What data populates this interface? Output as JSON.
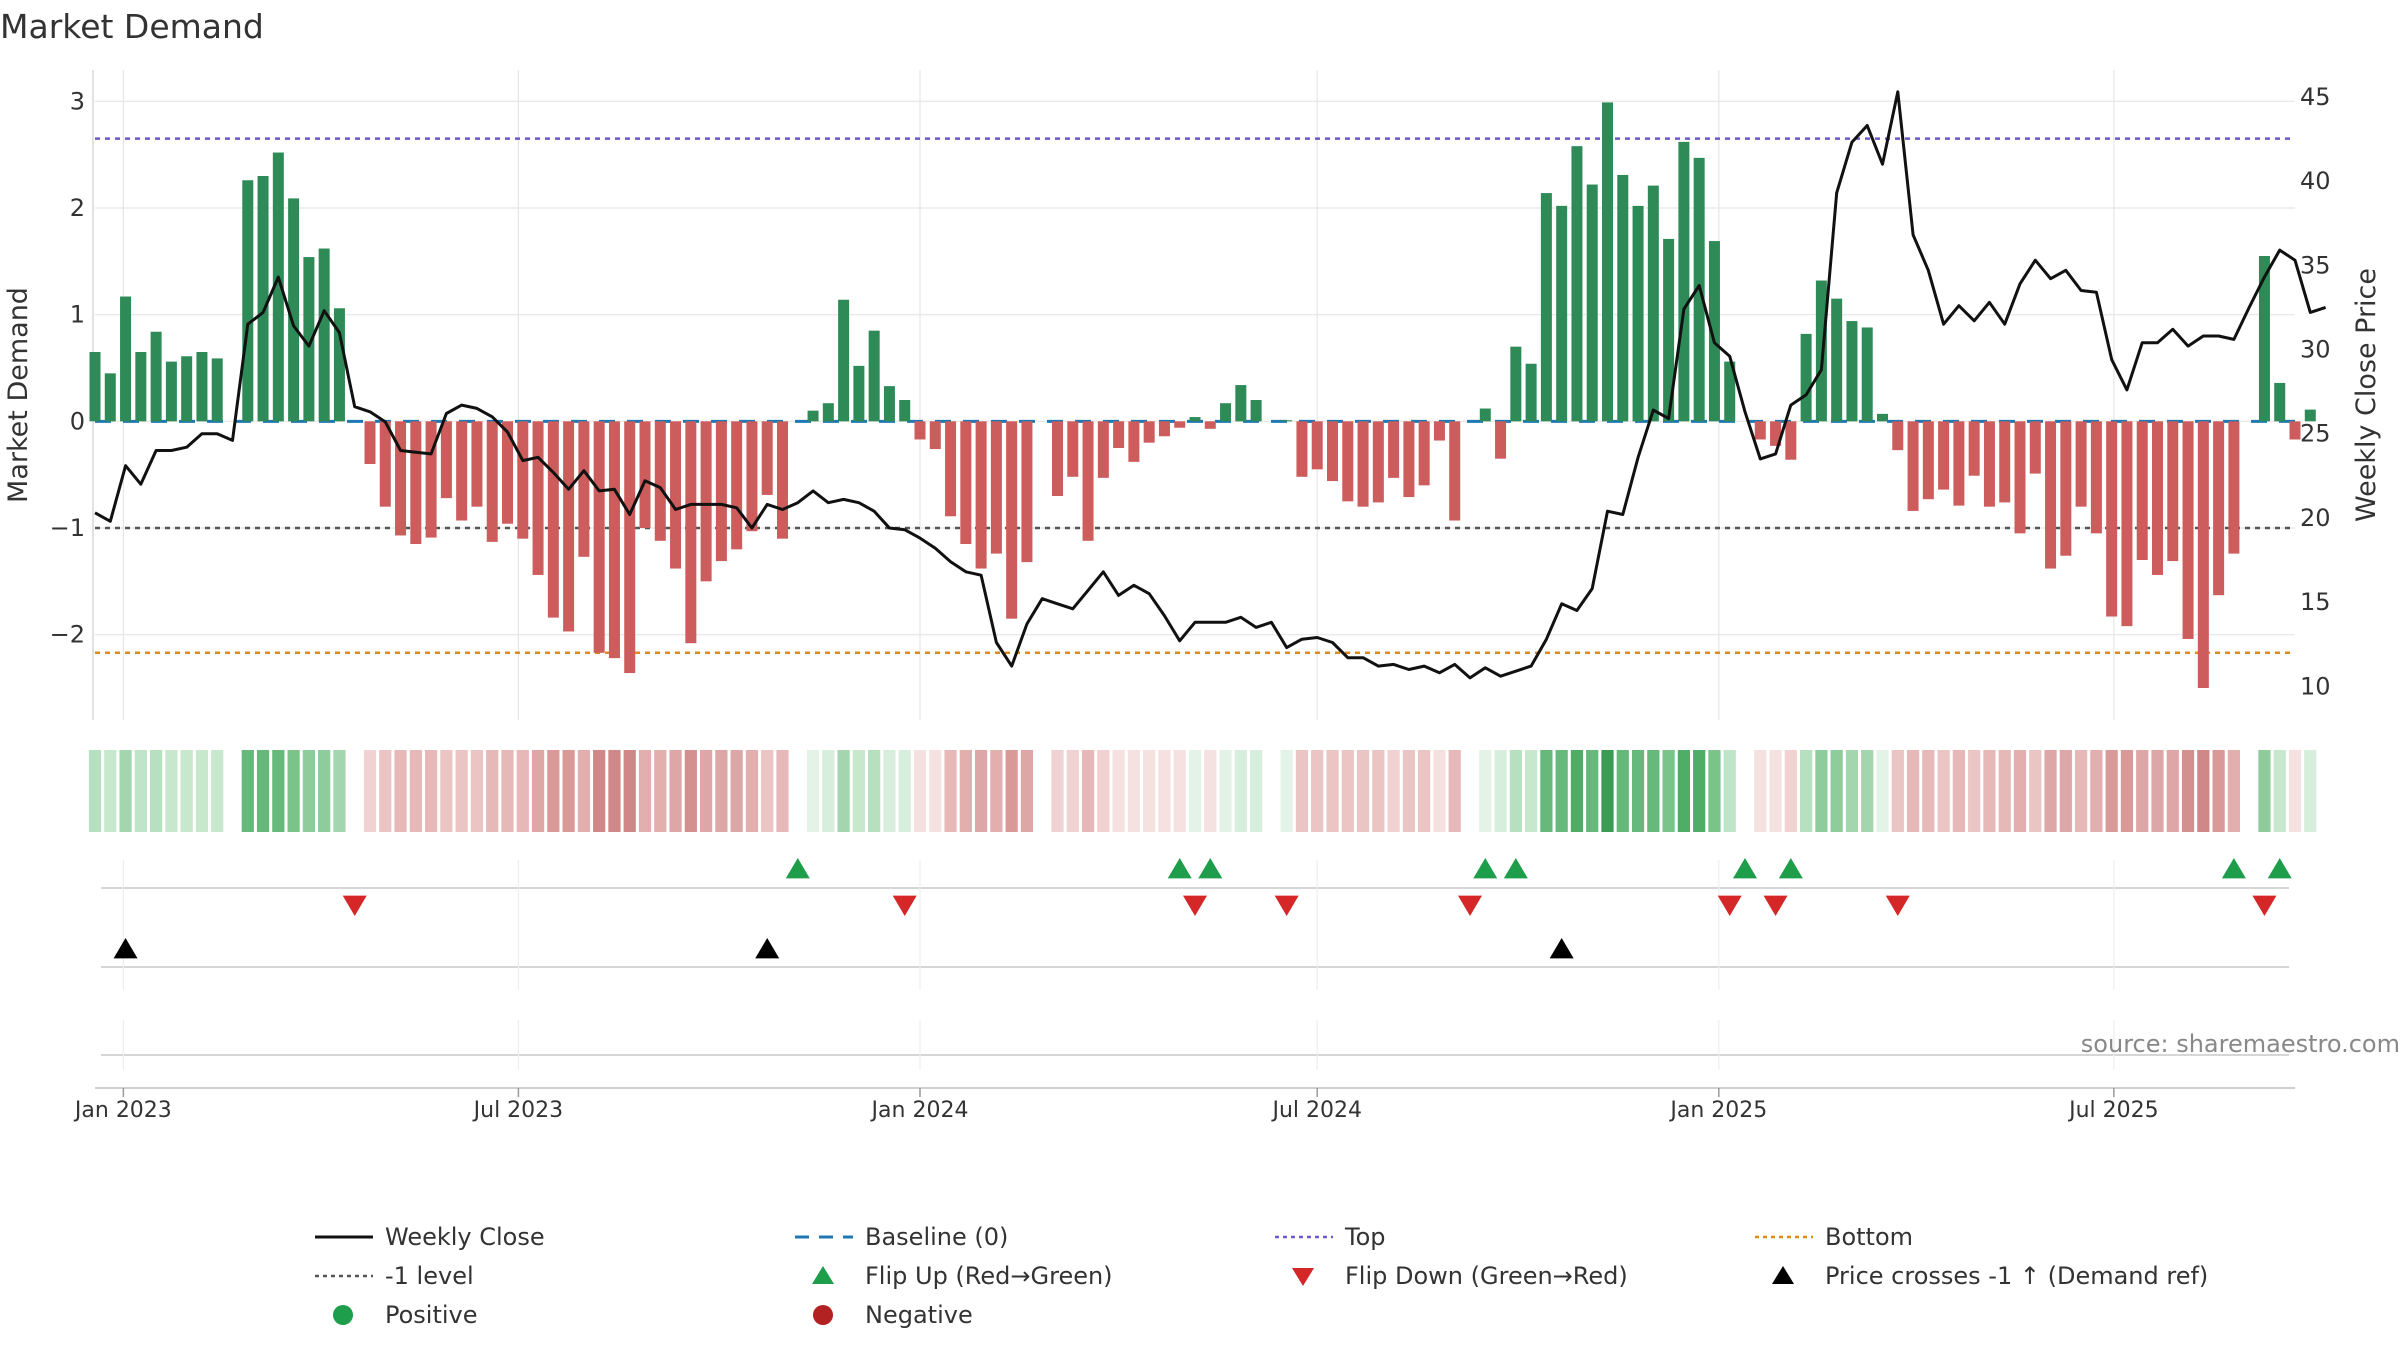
{
  "title": "Market Demand",
  "source": "source: sharemaestro.com",
  "colors": {
    "positive_bar": "#2e8b57",
    "negative_bar": "#cd5c5c",
    "price_line": "#111111",
    "baseline": "#1f77b4",
    "top": "#6a5acd",
    "minus_one": "#555555",
    "bottom": "#e08a1e",
    "flip_up": "#1e9e4a",
    "flip_down": "#d62728",
    "cross": "#000000",
    "grid": "#e6e6e6"
  },
  "chart_data": {
    "type": "bar+line",
    "title": "Market Demand",
    "ylabel": "Market Demand",
    "y2label": "Weekly Close Price",
    "ylim": [
      -2.8,
      3.2
    ],
    "y2lim": [
      8,
      46
    ],
    "yticks": [
      3,
      2,
      1,
      0,
      -1,
      -2
    ],
    "ytick_labels": [
      "3",
      "2",
      "1",
      "0",
      "−1",
      "−2"
    ],
    "y2ticks": [
      45,
      40,
      35,
      30,
      25,
      20,
      15,
      10
    ],
    "x_start_date": "2022-12-19",
    "x_end_date": "2025-09-22",
    "x_tick_labels": [
      {
        "date": "2023-01-01",
        "label": "Jan 2023"
      },
      {
        "date": "2023-07-01",
        "label": "Jul 2023"
      },
      {
        "date": "2024-01-01",
        "label": "Jan 2024"
      },
      {
        "date": "2024-07-01",
        "label": "Jul 2024"
      },
      {
        "date": "2025-01-01",
        "label": "Jan 2025"
      },
      {
        "date": "2025-07-01",
        "label": "Jul 2025"
      }
    ],
    "reference_levels": {
      "baseline": 0,
      "top": 2.65,
      "minus_one": -1,
      "bottom": -2.17
    },
    "series": [
      {
        "name": "Market Demand",
        "start_date": "2022-12-19",
        "interval_days": 7,
        "values": [
          0.65,
          0.45,
          1.17,
          0.65,
          0.84,
          0.56,
          0.61,
          0.65,
          0.59,
          0,
          2.26,
          2.3,
          2.52,
          2.09,
          1.54,
          1.62,
          1.06,
          0,
          -0.4,
          -0.8,
          -1.07,
          -1.15,
          -1.09,
          -0.72,
          -0.93,
          -0.8,
          -1.13,
          -0.96,
          -1.1,
          -1.44,
          -1.84,
          -1.97,
          -1.27,
          -2.17,
          -2.22,
          -2.36,
          -1.0,
          -1.12,
          -1.38,
          -2.08,
          -1.5,
          -1.31,
          -1.2,
          -1.03,
          -0.69,
          -1.1,
          0,
          0.1,
          0.17,
          1.14,
          0.52,
          0.85,
          0.33,
          0.2,
          -0.17,
          -0.26,
          -0.89,
          -1.15,
          -1.38,
          -1.24,
          -1.85,
          -1.32,
          0,
          -0.7,
          -0.52,
          -1.12,
          -0.53,
          -0.25,
          -0.38,
          -0.2,
          -0.14,
          -0.06,
          0.04,
          -0.07,
          0.17,
          0.34,
          0.2,
          0,
          0.01,
          -0.52,
          -0.45,
          -0.56,
          -0.75,
          -0.8,
          -0.76,
          -0.53,
          -0.71,
          -0.6,
          -0.18,
          -0.93,
          0,
          0.12,
          -0.35,
          0.7,
          0.54,
          2.14,
          2.02,
          2.58,
          2.22,
          2.99,
          2.31,
          2.02,
          2.21,
          1.71,
          2.62,
          2.47,
          1.69,
          0.56,
          0,
          -0.17,
          -0.23,
          -0.36,
          0.82,
          1.32,
          1.15,
          0.94,
          0.88,
          0.07,
          -0.27,
          -0.84,
          -0.73,
          -0.64,
          -0.79,
          -0.51,
          -0.8,
          -0.76,
          -1.05,
          -0.49,
          -1.38,
          -1.26,
          -0.8,
          -1.05,
          -1.83,
          -1.92,
          -1.3,
          -1.44,
          -1.31,
          -2.04,
          -2.5,
          -1.63,
          -1.24,
          0,
          1.55,
          0.36,
          -0.17,
          0.11
        ]
      },
      {
        "name": "Weekly Close",
        "start_date": "2022-12-19",
        "interval_days": 7,
        "values": [
          20.3,
          19.8,
          23.1,
          22.0,
          24.0,
          24.0,
          24.2,
          25.0,
          25.0,
          24.6,
          31.5,
          32.2,
          34.3,
          31.4,
          30.2,
          32.3,
          31.0,
          26.6,
          26.3,
          25.7,
          24.0,
          23.9,
          23.8,
          26.2,
          26.7,
          26.5,
          26.0,
          25.1,
          23.4,
          23.6,
          22.7,
          21.7,
          22.8,
          21.6,
          21.7,
          20.2,
          22.2,
          21.8,
          20.5,
          20.8,
          20.8,
          20.8,
          20.6,
          19.4,
          20.8,
          20.5,
          20.9,
          21.6,
          20.9,
          21.1,
          20.9,
          20.4,
          19.4,
          19.3,
          18.8,
          18.2,
          17.4,
          16.8,
          16.6,
          12.6,
          11.2,
          13.7,
          15.2,
          14.9,
          14.6,
          15.7,
          16.8,
          15.4,
          16.0,
          15.5,
          14.2,
          12.7,
          13.8,
          13.8,
          13.8,
          14.1,
          13.5,
          13.8,
          12.3,
          12.8,
          12.9,
          12.6,
          11.7,
          11.7,
          11.2,
          11.3,
          11.0,
          11.2,
          10.8,
          11.3,
          10.5,
          11.1,
          10.6,
          10.9,
          11.2,
          12.8,
          14.9,
          14.5,
          15.8,
          20.4,
          20.2,
          23.6,
          26.4,
          25.9,
          32.4,
          33.8,
          30.4,
          29.6,
          26.3,
          23.5,
          23.8,
          26.7,
          27.3,
          28.8,
          39.3,
          42.3,
          43.3,
          41.0,
          45.3,
          36.8,
          34.7,
          31.5,
          32.6,
          31.7,
          32.8,
          31.5,
          33.9,
          35.3,
          34.2,
          34.7,
          33.5,
          33.4,
          29.4,
          27.6,
          30.4,
          30.4,
          31.2,
          30.2,
          30.8,
          30.8,
          30.6,
          32.5,
          34.3,
          35.9,
          35.3,
          32.2,
          32.5
        ]
      }
    ],
    "strip_colors": [
      "#b6e0bf",
      "#c7e8cd",
      "#a3d6ae",
      "#c0e4c7",
      "#b6e0bf",
      "#c7e8cd",
      "#c7e8cd",
      "#c7e8cd",
      "#c7e8cd",
      "#ffffff",
      "#66b97a",
      "#66b97a",
      "#66b97a",
      "#7ac489",
      "#8fcc9b",
      "#8fcc9b",
      "#a3d6ae",
      "#ffffff",
      "#f1d2d2",
      "#ebc4c4",
      "#e6b8b8",
      "#e6b8b8",
      "#e6b8b8",
      "#ebc4c4",
      "#ebc4c4",
      "#ebc4c4",
      "#e6b8b8",
      "#e6b8b8",
      "#e6b8b8",
      "#dea7a7",
      "#d99999",
      "#d99999",
      "#e2aeae",
      "#cf8787",
      "#cf8787",
      "#cf8787",
      "#e2aeae",
      "#e2aeae",
      "#dea7a7",
      "#d48f8f",
      "#dea7a7",
      "#dea7a7",
      "#dea7a7",
      "#e2aeae",
      "#ebc4c4",
      "#e6b8b8",
      "#ffffff",
      "#e4f3e7",
      "#d7eedc",
      "#a3d6ae",
      "#c7e8cd",
      "#b6e0bf",
      "#d7eedc",
      "#d7eedc",
      "#f6e1e1",
      "#f6e1e1",
      "#e6b8b8",
      "#e2aeae",
      "#dea7a7",
      "#e2aeae",
      "#d99999",
      "#dea7a7",
      "#ffffff",
      "#f1d2d2",
      "#f1d2d2",
      "#e6b8b8",
      "#f1d2d2",
      "#f6e1e1",
      "#f6e1e1",
      "#f6e1e1",
      "#f6e1e1",
      "#f6e1e1",
      "#e4f3e7",
      "#f6e1e1",
      "#e4f3e7",
      "#d7eedc",
      "#d7eedc",
      "#ffffff",
      "#e4f3e7",
      "#ebc4c4",
      "#ebc4c4",
      "#ebc4c4",
      "#ebc4c4",
      "#ebc4c4",
      "#ebc4c4",
      "#f1d2d2",
      "#ebc4c4",
      "#ebc4c4",
      "#f6e1e1",
      "#e6b8b8",
      "#ffffff",
      "#e4f3e7",
      "#d7eedc",
      "#b6e0bf",
      "#c7e8cd",
      "#66b97a",
      "#66b97a",
      "#50ad65",
      "#66b97a",
      "#3a9c52",
      "#66b97a",
      "#66b97a",
      "#66b97a",
      "#7ac489",
      "#50ad65",
      "#50ad65",
      "#7ac489",
      "#c0e4c7",
      "#ffffff",
      "#f6e1e1",
      "#f6e1e1",
      "#f1d2d2",
      "#b6e0bf",
      "#8fcc9b",
      "#8fcc9b",
      "#a3d6ae",
      "#a3d6ae",
      "#e4f3e7",
      "#ebc4c4",
      "#e6b8b8",
      "#e6b8b8",
      "#ebc4c4",
      "#e6b8b8",
      "#ebc4c4",
      "#e6b8b8",
      "#e6b8b8",
      "#e2aeae",
      "#ebc4c4",
      "#dea7a7",
      "#dea7a7",
      "#e6b8b8",
      "#e2aeae",
      "#d99999",
      "#d99999",
      "#dea7a7",
      "#dea7a7",
      "#dea7a7",
      "#d48f8f",
      "#cf8787",
      "#d99999",
      "#e2aeae",
      "#ffffff",
      "#8fcc9b",
      "#c7e8cd",
      "#f6e1e1",
      "#d7eedc"
    ],
    "flip_up_indices": [
      46,
      71,
      73,
      91,
      93,
      108,
      111,
      140,
      143
    ],
    "flip_down_indices": [
      17,
      53,
      72,
      78,
      90,
      107,
      110,
      118,
      142
    ],
    "price_cross_indices": [
      2,
      44,
      96
    ]
  },
  "legend": [
    {
      "label": "Weekly Close",
      "symbol": "line",
      "color": "#111111"
    },
    {
      "label": "Baseline (0)",
      "symbol": "dash",
      "color": "#1f77b4"
    },
    {
      "label": "Top",
      "symbol": "dot",
      "color": "#6a5acd"
    },
    {
      "label": "Bottom",
      "symbol": "dot",
      "color": "#e08a1e"
    },
    {
      "label": "-1 level",
      "symbol": "dot",
      "color": "#555555"
    },
    {
      "label": "Flip Up (Red→Green)",
      "symbol": "tri-up",
      "color": "#1e9e4a"
    },
    {
      "label": "Flip Down (Green→Red)",
      "symbol": "tri-down",
      "color": "#d62728"
    },
    {
      "label": "Price crosses -1 ↑ (Demand ref)",
      "symbol": "tri-up",
      "color": "#000000"
    },
    {
      "label": "Positive",
      "symbol": "circle",
      "color": "#1e9e4a"
    },
    {
      "label": "Negative",
      "symbol": "circle",
      "color": "#b22222"
    }
  ]
}
